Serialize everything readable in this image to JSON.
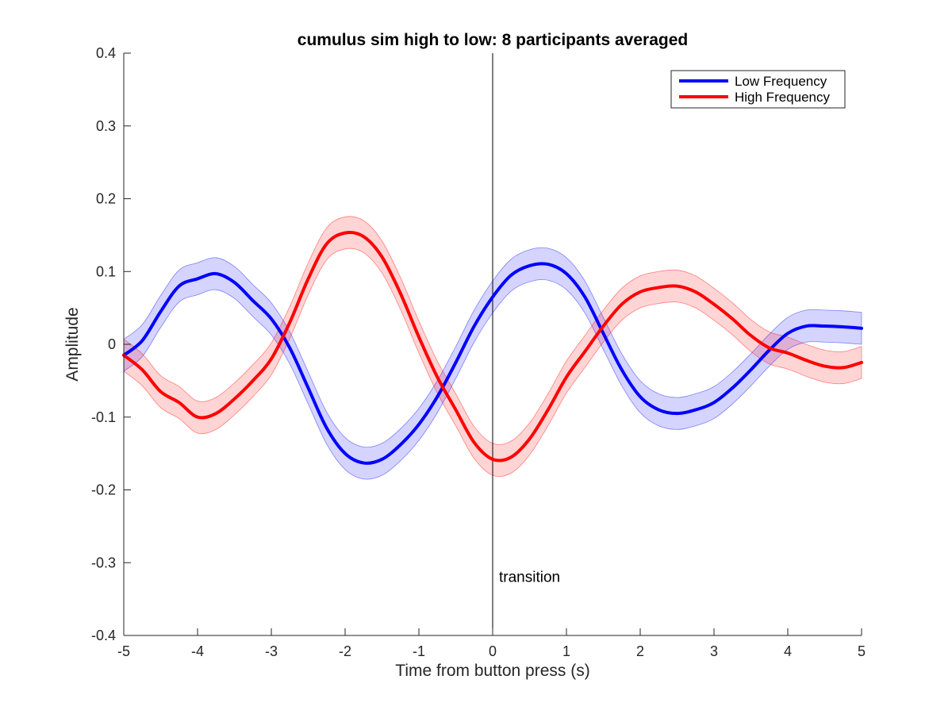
{
  "chart_data": {
    "type": "line",
    "title": "cumulus sim high to low: 8 participants averaged",
    "xlabel": "Time from button press (s)",
    "ylabel": "Amplitude",
    "xlim": [
      -5,
      5
    ],
    "ylim": [
      -0.4,
      0.4
    ],
    "xticks": [
      -5,
      -4,
      -3,
      -2,
      -1,
      0,
      1,
      2,
      3,
      4,
      5
    ],
    "yticks": [
      -0.4,
      -0.3,
      -0.2,
      -0.1,
      0,
      0.1,
      0.2,
      0.3,
      0.4
    ],
    "xtick_labels": [
      "-5",
      "-4",
      "-3",
      "-2",
      "-1",
      "0",
      "1",
      "2",
      "3",
      "4",
      "5"
    ],
    "ytick_labels": [
      "-0.4",
      "-0.3",
      "-0.2",
      "-0.1",
      "0",
      "0.1",
      "0.2",
      "0.3",
      "0.4"
    ],
    "grid": false,
    "legend_position": "top-right",
    "annotation": {
      "text": "transition",
      "x": 0,
      "y": -0.32
    },
    "vertical_line_x": 0,
    "band_halfwidth": 0.022,
    "x": [
      -5.0,
      -4.75,
      -4.5,
      -4.25,
      -4.0,
      -3.75,
      -3.5,
      -3.25,
      -3.0,
      -2.75,
      -2.5,
      -2.25,
      -2.0,
      -1.75,
      -1.5,
      -1.25,
      -1.0,
      -0.75,
      -0.5,
      -0.25,
      0.0,
      0.25,
      0.5,
      0.75,
      1.0,
      1.25,
      1.5,
      1.75,
      2.0,
      2.25,
      2.5,
      2.75,
      3.0,
      3.25,
      3.5,
      3.75,
      4.0,
      4.25,
      4.5,
      4.75,
      5.0
    ],
    "series": [
      {
        "name": "Low Frequency",
        "color": "#0000ff",
        "band_color": "#0000ff",
        "values": [
          -0.015,
          0.005,
          0.045,
          0.08,
          0.09,
          0.097,
          0.085,
          0.06,
          0.035,
          -0.005,
          -0.06,
          -0.115,
          -0.15,
          -0.163,
          -0.158,
          -0.138,
          -0.11,
          -0.072,
          -0.025,
          0.025,
          0.065,
          0.095,
          0.108,
          0.11,
          0.097,
          0.065,
          0.015,
          -0.035,
          -0.072,
          -0.09,
          -0.095,
          -0.09,
          -0.08,
          -0.06,
          -0.035,
          -0.008,
          0.015,
          0.025,
          0.025,
          0.024,
          0.022
        ]
      },
      {
        "name": "High Frequency",
        "color": "#ff0000",
        "band_color": "#ff0000",
        "values": [
          -0.015,
          -0.035,
          -0.065,
          -0.08,
          -0.1,
          -0.095,
          -0.075,
          -0.05,
          -0.02,
          0.03,
          0.09,
          0.138,
          0.153,
          0.148,
          0.12,
          0.07,
          0.01,
          -0.045,
          -0.09,
          -0.135,
          -0.158,
          -0.155,
          -0.13,
          -0.09,
          -0.045,
          -0.01,
          0.025,
          0.055,
          0.072,
          0.078,
          0.08,
          0.072,
          0.055,
          0.035,
          0.012,
          -0.005,
          -0.012,
          -0.022,
          -0.03,
          -0.032,
          -0.025
        ]
      }
    ]
  }
}
